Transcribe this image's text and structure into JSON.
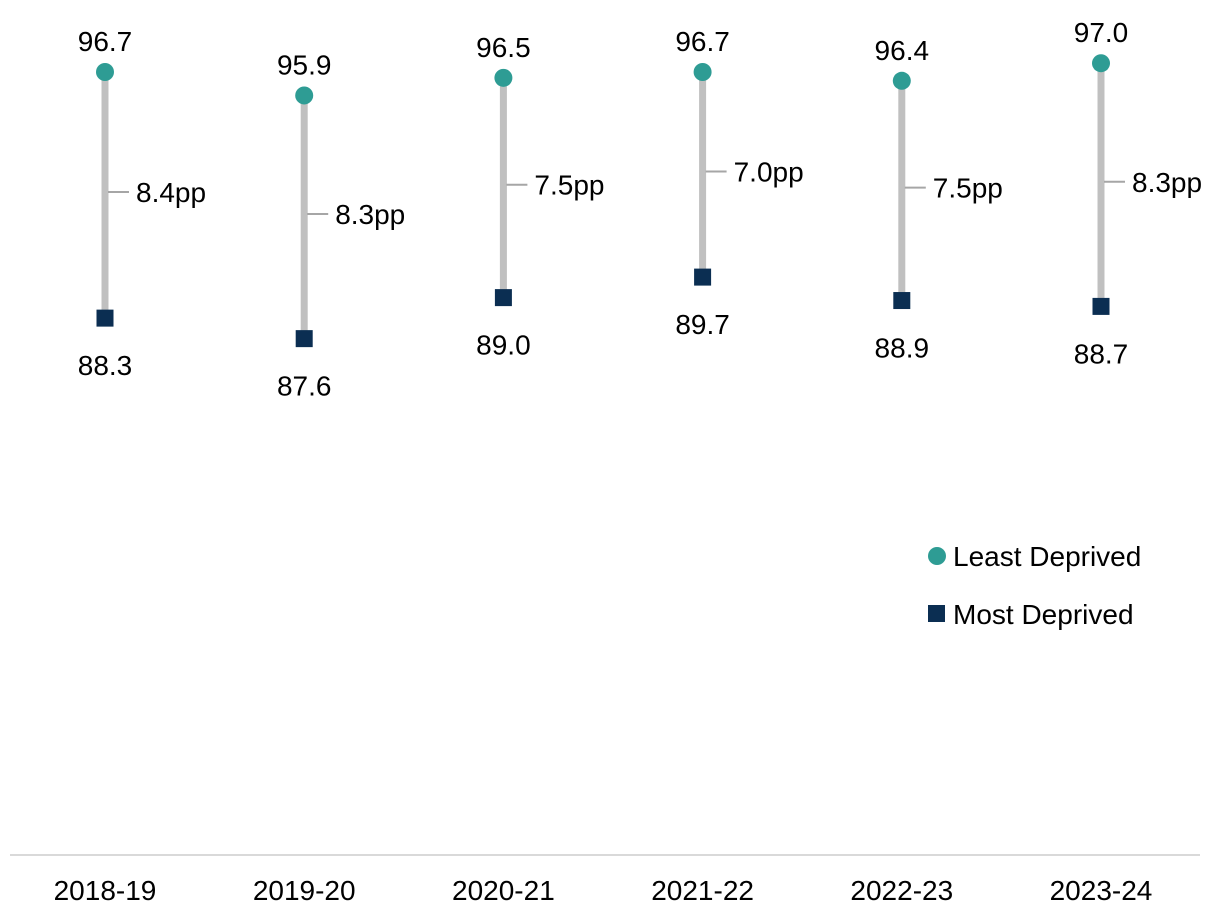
{
  "chart_data": {
    "type": "dumbbell",
    "title": "",
    "xlabel": "",
    "ylabel": "",
    "categories": [
      "2018-19",
      "2019-20",
      "2020-21",
      "2021-22",
      "2022-23",
      "2023-24"
    ],
    "series": [
      {
        "name": "Least Deprived",
        "values": [
          96.7,
          95.9,
          96.5,
          96.7,
          96.4,
          97.0
        ],
        "color": "#2e9c94",
        "marker": "circle"
      },
      {
        "name": "Most Deprived",
        "values": [
          88.3,
          87.6,
          89.0,
          89.7,
          88.9,
          88.7
        ],
        "color": "#0b2e52",
        "marker": "square"
      }
    ],
    "gap_labels": [
      "8.4pp",
      "8.3pp",
      "7.5pp",
      "7.0pp",
      "7.5pp",
      "8.3pp"
    ],
    "connector_color": "#c0c0c0",
    "legend_position": "right",
    "grid": false
  }
}
